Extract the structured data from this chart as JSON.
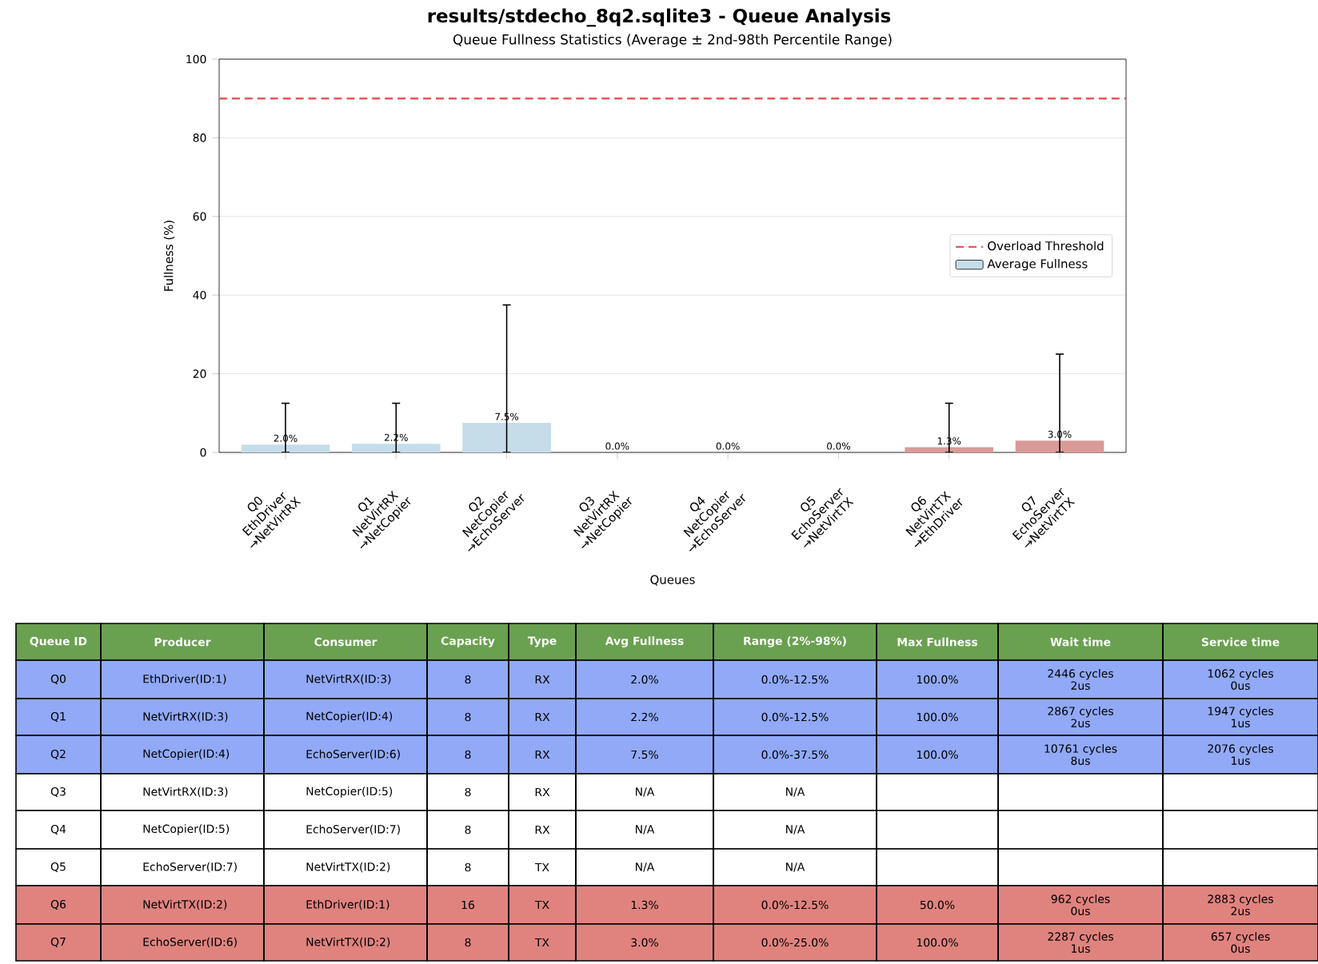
{
  "chart_data": {
    "type": "bar",
    "title": "results/stdecho_8q2.sqlite3 - Queue Analysis",
    "subtitle": "Queue Fullness Statistics (Average ± 2nd-98th Percentile Range)",
    "xlabel": "Queues",
    "ylabel": "Fullness (%)",
    "categories": [
      "Q0 EthDriver →NetVirtRX",
      "Q1 NetVirtRX →NetCopier",
      "Q2 NetCopier →EchoServer",
      "Q3 NetVirtRX →NetCopier",
      "Q4 NetCopier →EchoServer",
      "Q5 EchoServer →NetVirtTX",
      "Q6 NetVirtTX →EthDriver",
      "Q7 EchoServer →NetVirtTX"
    ],
    "series": [
      {
        "name": "Average Fullness",
        "values": [
          2.0,
          2.2,
          7.5,
          0.0,
          0.0,
          0.0,
          1.3,
          3.0
        ],
        "colors": [
          "#c5dde8",
          "#c5dde8",
          "#c5dde8",
          "#c5dde8",
          "#c5dde8",
          "#c5dde8",
          "#d99a98",
          "#d99a98"
        ],
        "errors": [
          [
            0.0,
            12.5
          ],
          [
            0.0,
            12.5
          ],
          [
            0.0,
            37.5
          ],
          null,
          null,
          null,
          [
            0.0,
            12.5
          ],
          [
            0.0,
            25.0
          ]
        ],
        "value_labels": [
          "2.0%",
          "2.2%",
          "7.5%",
          "0.0%",
          "0.0%",
          "0.0%",
          "1.3%",
          "3.0%"
        ]
      }
    ],
    "ref_lines": [
      {
        "axis": "y",
        "value": 90,
        "label": "Overload Threshold",
        "color": "#e05a5a",
        "line_style": "dashed"
      }
    ],
    "ylim": [
      0,
      100
    ],
    "yticks": [
      0,
      20,
      40,
      60,
      80,
      100
    ],
    "grid": "y",
    "legend": "center right",
    "annotations": [
      "Queue ID",
      "Producer",
      "Consumer",
      "Capacity",
      "Type",
      "Avg Fullness",
      "Range (2%-98%)",
      "Max Fullness",
      "Wait time",
      "Service time",
      "Q0",
      "EthDriver(ID:1)",
      "NetVirtRX(ID:3)",
      "8",
      "RX",
      "2.0%",
      "0.0%-12.5%",
      "100.0%",
      "2446 cycles 2us",
      "1062 cycles 0us",
      "Q1",
      "NetVirtRX(ID:3)",
      "NetCopier(ID:4)",
      "8",
      "RX",
      "2.2%",
      "0.0%-12.5%",
      "100.0%",
      "2867 cycles 2us",
      "1947 cycles 1us",
      "Q2",
      "NetCopier(ID:4)",
      "EchoServer(ID:6)",
      "8",
      "RX",
      "7.5%",
      "0.0%-37.5%",
      "100.0%",
      "10761 cycles 8us",
      "2076 cycles 1us",
      "Q3",
      "NetVirtRX(ID:3)",
      "NetCopier(ID:5)",
      "8",
      "RX",
      "N/A",
      "N/A",
      "Q4",
      "NetCopier(ID:5)",
      "EchoServer(ID:7)",
      "8",
      "RX",
      "N/A",
      "N/A",
      "Q5",
      "EchoServer(ID:7)",
      "NetVirtTX(ID:2)",
      "8",
      "TX",
      "N/A",
      "N/A",
      "Q6",
      "NetVirtTX(ID:2)",
      "EthDriver(ID:1)",
      "16",
      "TX",
      "1.3%",
      "0.0%-12.5%",
      "50.0%",
      "962 cycles 0us",
      "2883 cycles 2us",
      "Q7",
      "EchoServer(ID:6)",
      "NetVirtTX(ID:2)",
      "8",
      "TX",
      "3.0%",
      "0.0%-25.0%",
      "100.0%",
      "2287 cycles 1us",
      "657 cycles 0us"
    ]
  }
}
